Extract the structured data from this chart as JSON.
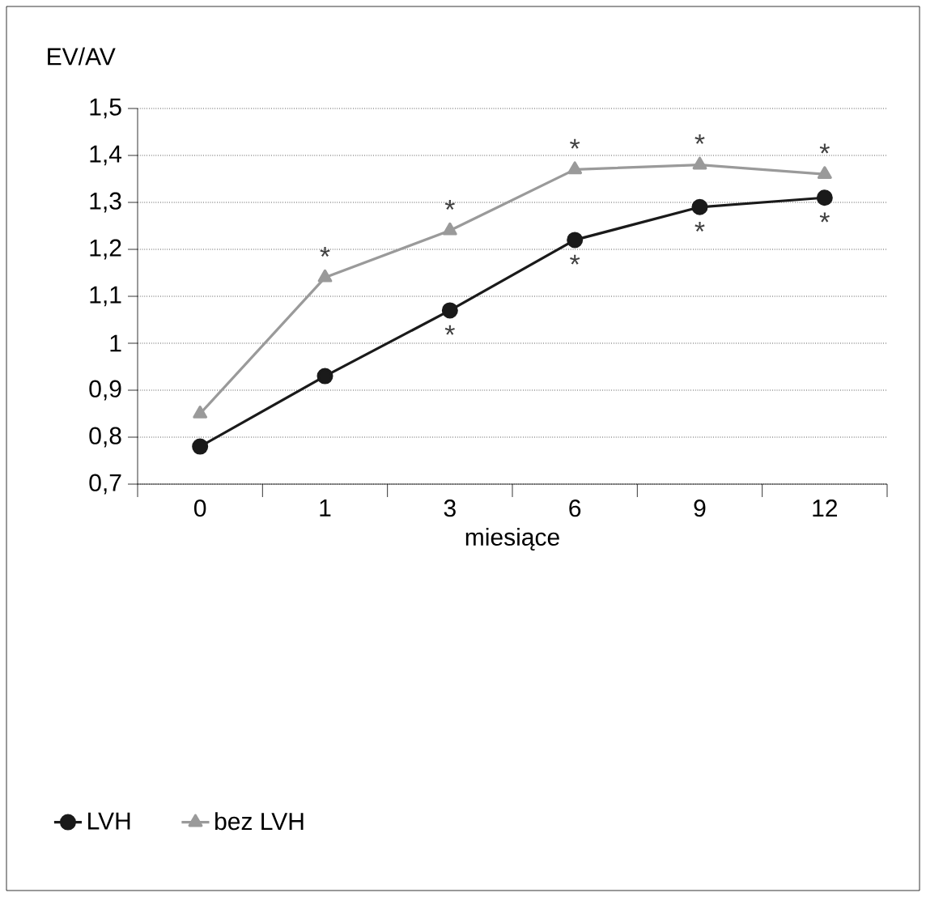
{
  "chart_data": {
    "type": "line",
    "ylabel": "EV/AV",
    "xlabel": "miesiące",
    "categories": [
      "0",
      "1",
      "3",
      "6",
      "9",
      "12"
    ],
    "series": [
      {
        "name": "LVH",
        "color": "#1a1a1a",
        "marker": "circle",
        "values": [
          0.78,
          0.93,
          1.07,
          1.22,
          1.29,
          1.31
        ]
      },
      {
        "name": "bez LVH",
        "color": "#9a9a9a",
        "marker": "triangle",
        "values": [
          0.85,
          1.14,
          1.24,
          1.37,
          1.38,
          1.36
        ]
      }
    ],
    "ylim": [
      0.7,
      1.5
    ],
    "yticks": [
      {
        "value": 0.7,
        "label": "0,7"
      },
      {
        "value": 0.8,
        "label": "0,8"
      },
      {
        "value": 0.9,
        "label": "0,9"
      },
      1,
      {
        "value": 1.1,
        "label": "1,1"
      },
      {
        "value": 1.2,
        "label": "1,2"
      },
      {
        "value": 1.3,
        "label": "1,3"
      },
      {
        "value": 1.4,
        "label": "1,4"
      },
      {
        "value": 1.5,
        "label": "1,5"
      }
    ],
    "grid": "y",
    "legend": "bottom",
    "line_style": "solid",
    "annotations": [
      {
        "text": "*",
        "x": "1",
        "y": 1.14
      },
      {
        "text": "*",
        "x": "3",
        "y": 1.24
      },
      {
        "text": "*",
        "x": "6",
        "y": 1.37
      },
      {
        "text": "*",
        "x": "9",
        "y": 1.38
      },
      {
        "text": "*",
        "x": "12",
        "y": 1.36
      },
      {
        "text": "*",
        "x": "3",
        "y": 1.07
      },
      {
        "text": "*",
        "x": "6",
        "y": 1.22
      },
      {
        "text": "*",
        "x": "9",
        "y": 1.29
      },
      {
        "text": "*",
        "x": "12",
        "y": 1.31
      }
    ]
  }
}
